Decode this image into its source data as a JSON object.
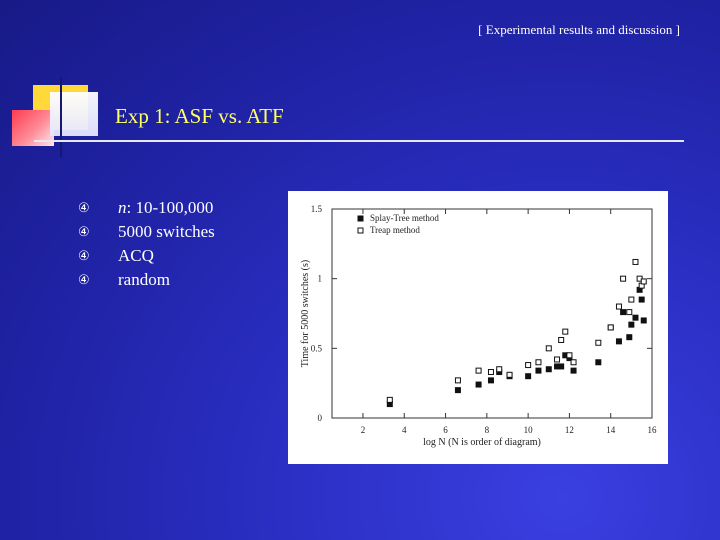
{
  "header": {
    "section_label": "[ Experimental results and discussion ]"
  },
  "slide": {
    "title": "Exp 1: ASF vs. ATF"
  },
  "bullets": [
    {
      "icon": "arrow-bullet-icon",
      "glyph": "④",
      "prefix_italic": "n",
      "text": ": 10-100,000"
    },
    {
      "icon": "arrow-bullet-icon",
      "glyph": "④",
      "prefix_italic": "",
      "text": "5000 switches"
    },
    {
      "icon": "arrow-bullet-icon",
      "glyph": "④",
      "prefix_italic": "",
      "text": "ACQ"
    },
    {
      "icon": "arrow-bullet-icon",
      "glyph": "④",
      "prefix_italic": "",
      "text": "random"
    }
  ],
  "colors": {
    "title": "#ffff66",
    "background": "#2b2fc4",
    "text": "#ffffff"
  },
  "chart_data": {
    "type": "scatter",
    "xlabel": "log N (N is order of diagram)",
    "ylabel": "Time for 5000 switches (s)",
    "xlim": [
      0.5,
      16
    ],
    "ylim": [
      0,
      1.5
    ],
    "xticks": [
      2,
      4,
      6,
      8,
      10,
      12,
      14,
      16
    ],
    "yticks": [
      0,
      0.5,
      1,
      1.5
    ],
    "ytick_labels": [
      "0",
      "0.5",
      "1",
      "1.5"
    ],
    "legend_position": "top-left",
    "series": [
      {
        "name": "Splay-Tree method",
        "marker": "filled-square",
        "points": [
          [
            3.3,
            0.1
          ],
          [
            6.6,
            0.2
          ],
          [
            7.6,
            0.24
          ],
          [
            8.2,
            0.27
          ],
          [
            8.6,
            0.33
          ],
          [
            9.1,
            0.3
          ],
          [
            10.0,
            0.3
          ],
          [
            10.5,
            0.34
          ],
          [
            11.0,
            0.35
          ],
          [
            11.4,
            0.37
          ],
          [
            11.6,
            0.37
          ],
          [
            11.8,
            0.45
          ],
          [
            12.0,
            0.43
          ],
          [
            12.2,
            0.34
          ],
          [
            13.4,
            0.4
          ],
          [
            14.0,
            0.65
          ],
          [
            14.4,
            0.55
          ],
          [
            14.6,
            0.76
          ],
          [
            14.9,
            0.58
          ],
          [
            15.0,
            0.67
          ],
          [
            15.2,
            0.72
          ],
          [
            15.4,
            0.92
          ],
          [
            15.5,
            0.85
          ],
          [
            15.6,
            0.7
          ]
        ]
      },
      {
        "name": "Treap method",
        "marker": "open-square",
        "points": [
          [
            3.3,
            0.13
          ],
          [
            6.6,
            0.27
          ],
          [
            7.6,
            0.34
          ],
          [
            8.2,
            0.33
          ],
          [
            8.6,
            0.35
          ],
          [
            9.1,
            0.31
          ],
          [
            10.0,
            0.38
          ],
          [
            10.5,
            0.4
          ],
          [
            11.0,
            0.5
          ],
          [
            11.4,
            0.42
          ],
          [
            11.6,
            0.56
          ],
          [
            11.8,
            0.62
          ],
          [
            12.0,
            0.45
          ],
          [
            12.2,
            0.4
          ],
          [
            13.4,
            0.54
          ],
          [
            14.0,
            0.65
          ],
          [
            14.4,
            0.8
          ],
          [
            14.6,
            1.0
          ],
          [
            14.9,
            0.76
          ],
          [
            15.0,
            0.85
          ],
          [
            15.2,
            1.12
          ],
          [
            15.4,
            1.0
          ],
          [
            15.5,
            0.95
          ],
          [
            15.6,
            0.98
          ]
        ]
      }
    ]
  }
}
